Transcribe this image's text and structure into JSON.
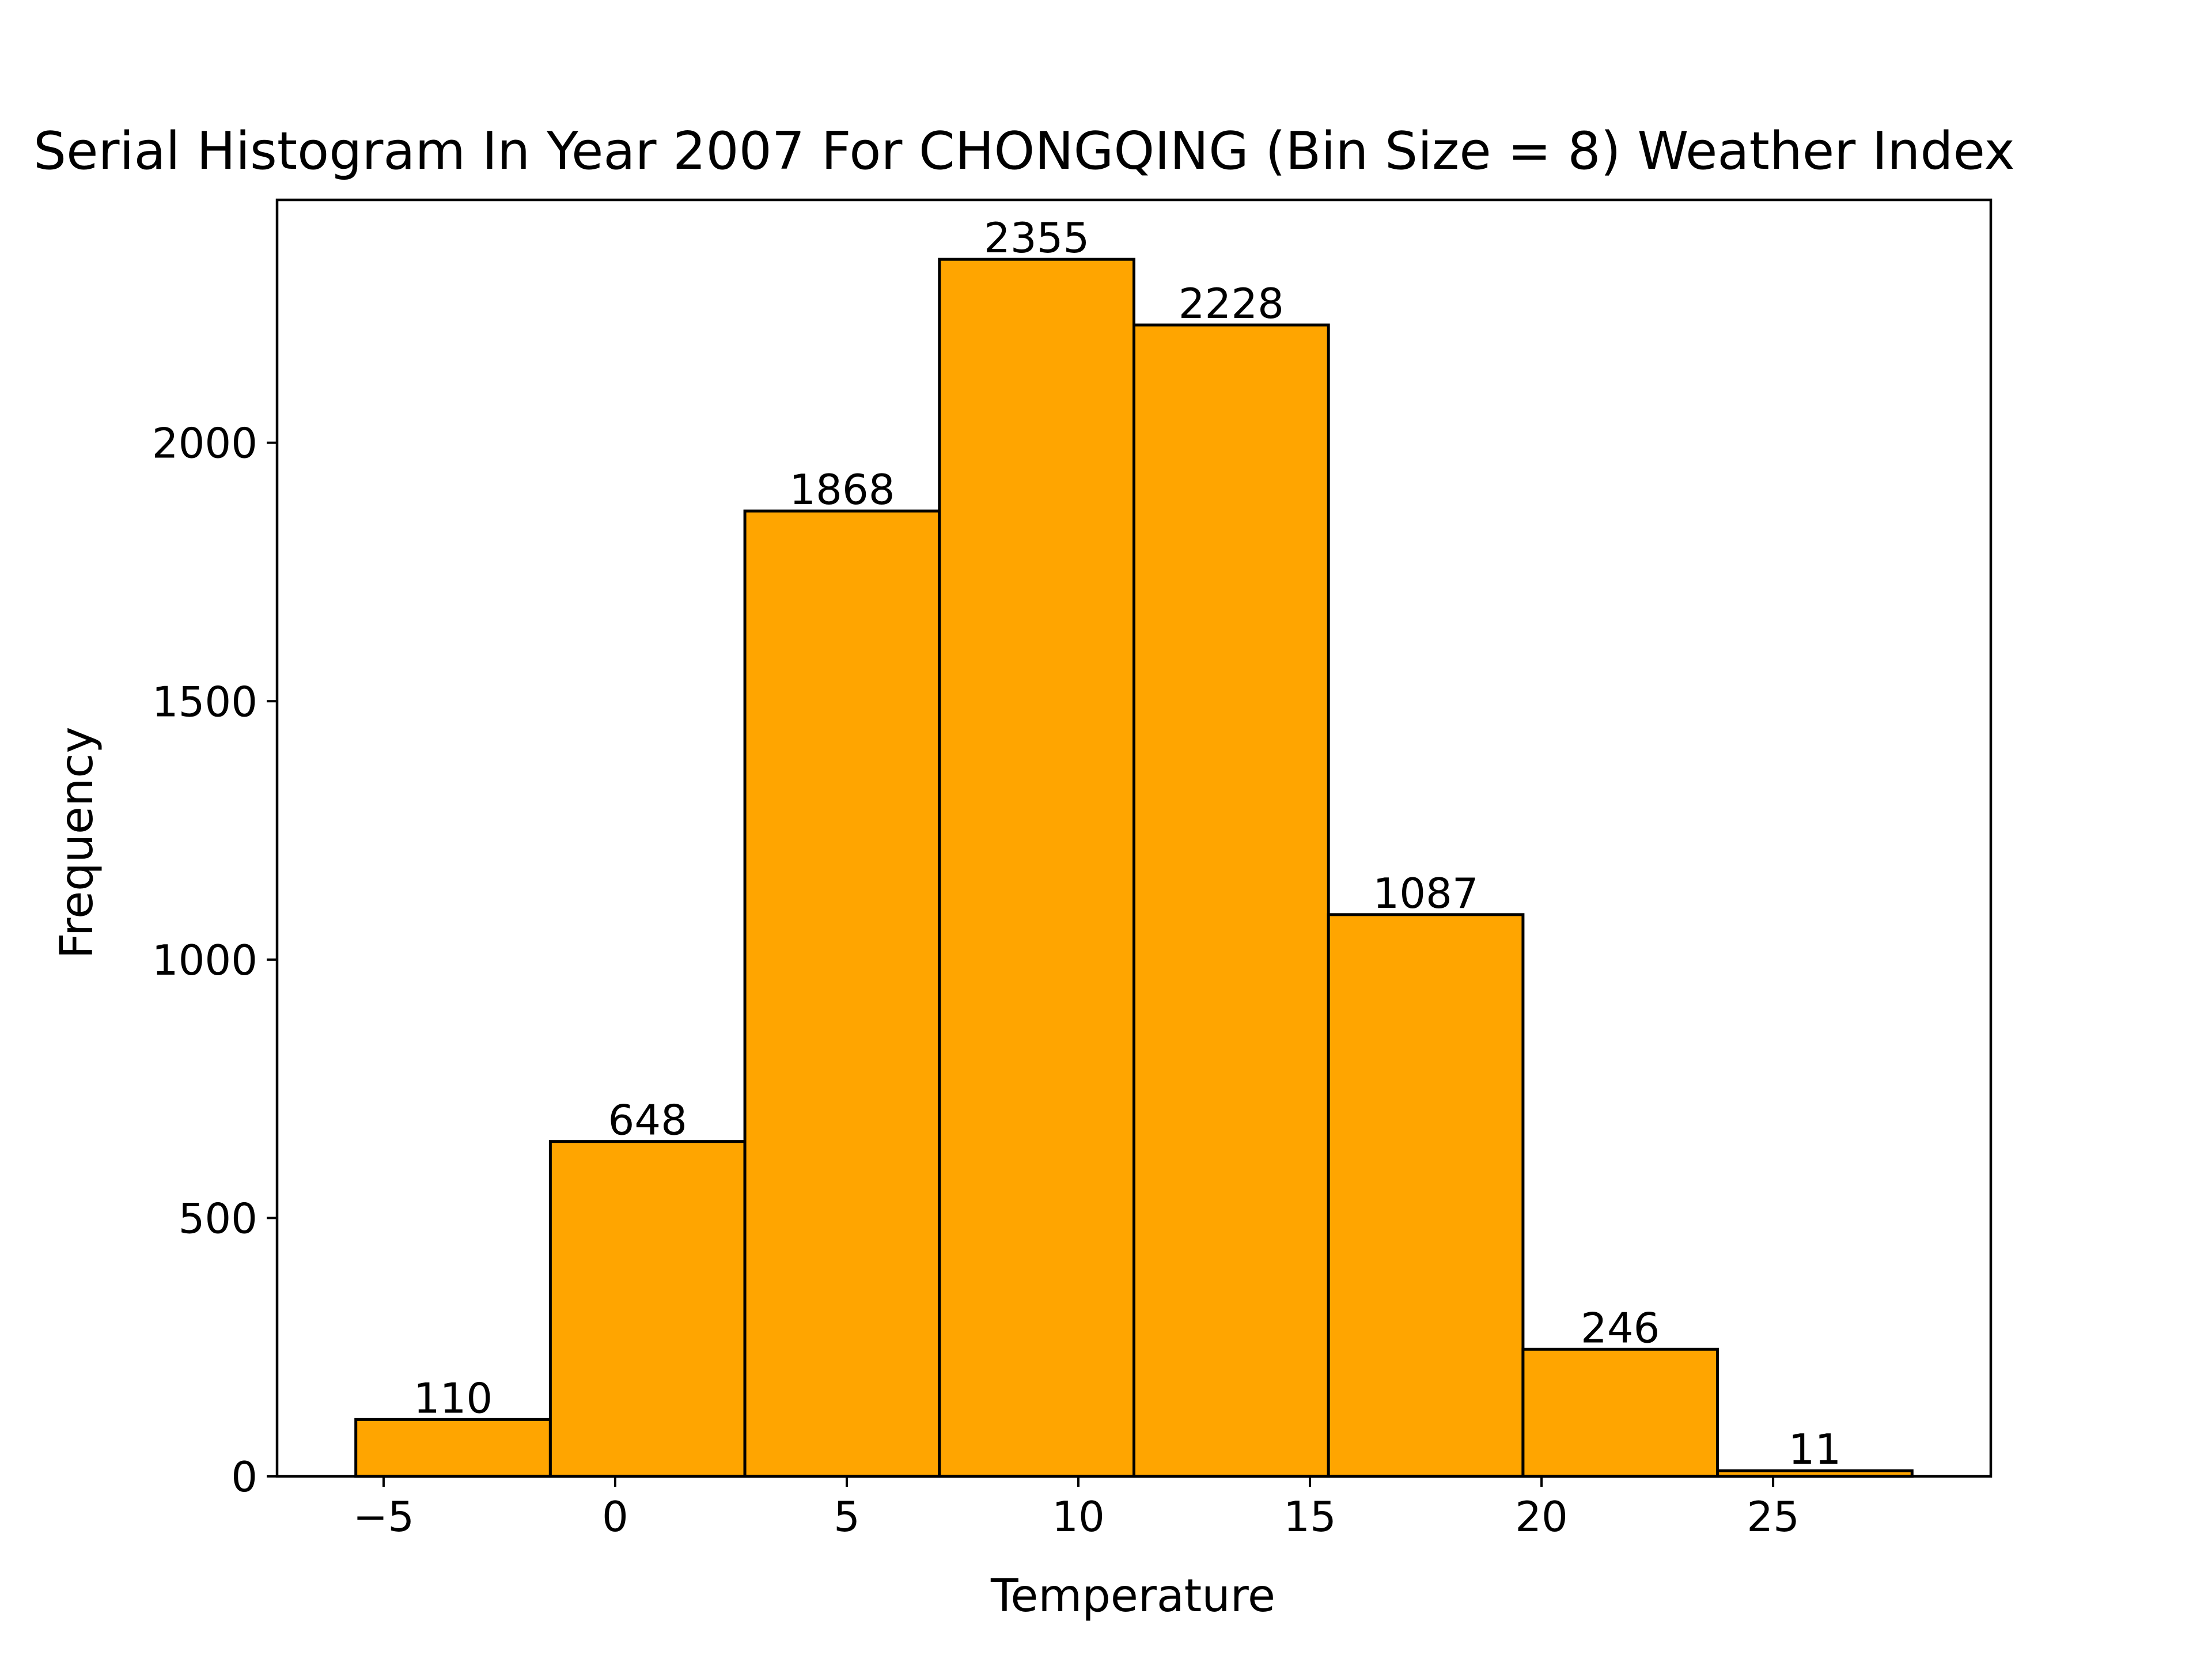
{
  "chart_data": {
    "type": "bar",
    "title": "Serial Histogram In Year 2007 For CHONGQING (Bin Size = 8) Weather Index",
    "xlabel": "Temperature",
    "ylabel": "Frequency",
    "bin_edges": [
      -5.6,
      -1.4,
      2.8,
      7.0,
      11.2,
      15.4,
      19.6,
      23.8,
      28.0
    ],
    "values": [
      110,
      648,
      1868,
      2355,
      2228,
      1087,
      246,
      11
    ],
    "xlim": [
      -7.3,
      29.7
    ],
    "ylim": [
      0,
      2470
    ],
    "xticks": [
      -5,
      0,
      5,
      10,
      15,
      20,
      25
    ],
    "xtick_labels": [
      "−5",
      "0",
      "5",
      "10",
      "15",
      "20",
      "25"
    ],
    "yticks": [
      0,
      500,
      1000,
      1500,
      2000
    ],
    "ytick_labels": [
      "0",
      "500",
      "1000",
      "1500",
      "2000"
    ],
    "bar_color": "#ffa500",
    "edge_color": "#000000",
    "grid": false,
    "legend": "none"
  }
}
